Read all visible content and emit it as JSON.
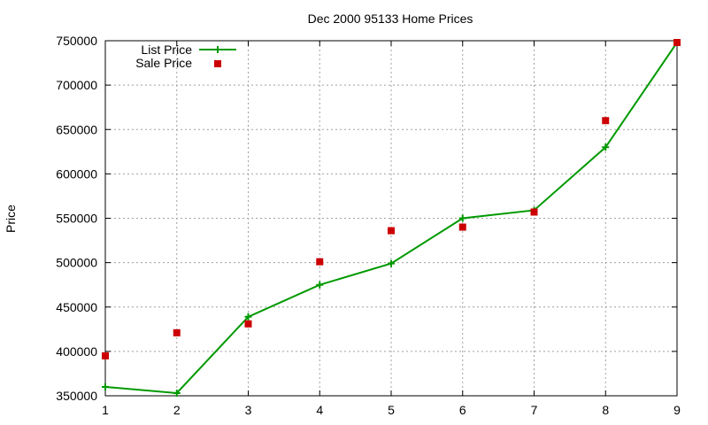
{
  "chart_data": {
    "type": "line",
    "title": "Dec 2000 95133 Home Prices",
    "xlabel": "",
    "ylabel": "Price",
    "x": [
      1,
      2,
      3,
      4,
      5,
      6,
      7,
      8,
      9
    ],
    "xlim": [
      1,
      9
    ],
    "ylim": [
      350000,
      750000
    ],
    "xticks": [
      "1",
      "2",
      "3",
      "4",
      "5",
      "6",
      "7",
      "8",
      "9"
    ],
    "yticks": [
      "350000",
      "400000",
      "450000",
      "500000",
      "550000",
      "600000",
      "650000",
      "700000",
      "750000"
    ],
    "grid": true,
    "legend_position": "top-left",
    "series": [
      {
        "name": "List Price",
        "style": "line-with-plus-markers",
        "color": "#009900",
        "values": [
          360000,
          353000,
          439000,
          475000,
          499000,
          550000,
          559000,
          630000,
          748000
        ]
      },
      {
        "name": "Sale Price",
        "style": "square-markers",
        "color": "#cc0000",
        "values": [
          395000,
          421000,
          431000,
          501000,
          536000,
          540000,
          557000,
          660000,
          748000
        ]
      }
    ]
  }
}
